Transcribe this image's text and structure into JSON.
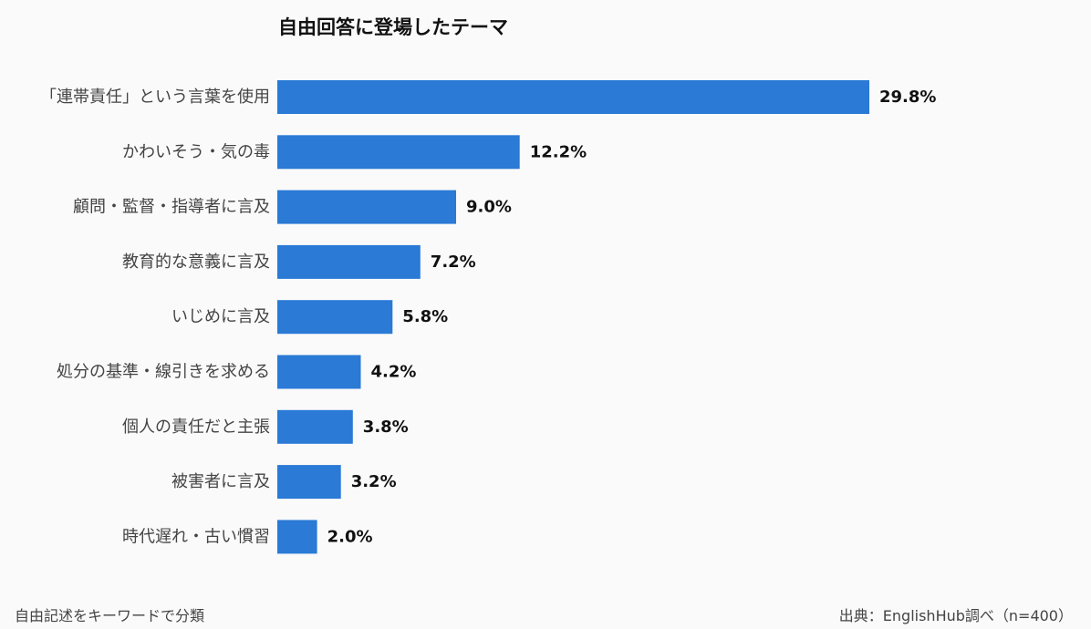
{
  "chart_data": {
    "type": "bar",
    "orientation": "horizontal",
    "title": "自由回答に登場したテーマ",
    "categories": [
      "「連帯責任」という言葉を使用",
      "かわいそう・気の毒",
      "顧問・監督・指導者に言及",
      "教育的な意義に言及",
      "いじめに言及",
      "処分の基準・線引きを求める",
      "個人の責任だと主張",
      "被害者に言及",
      "時代遅れ・古い慣習"
    ],
    "values": [
      29.8,
      12.2,
      9.0,
      7.2,
      5.8,
      4.2,
      3.8,
      3.2,
      2.0
    ],
    "value_labels": [
      "29.8%",
      "12.2%",
      "9.0%",
      "7.2%",
      "5.8%",
      "4.2%",
      "3.8%",
      "3.2%",
      "2.0%"
    ],
    "xlim": [
      0,
      30
    ],
    "bar_color": "#2a7ad6",
    "grid": false,
    "legend": "none"
  },
  "footer": {
    "note": "自由記述をキーワードで分類",
    "source": "出典：EnglishHub調べ（n=400）"
  }
}
